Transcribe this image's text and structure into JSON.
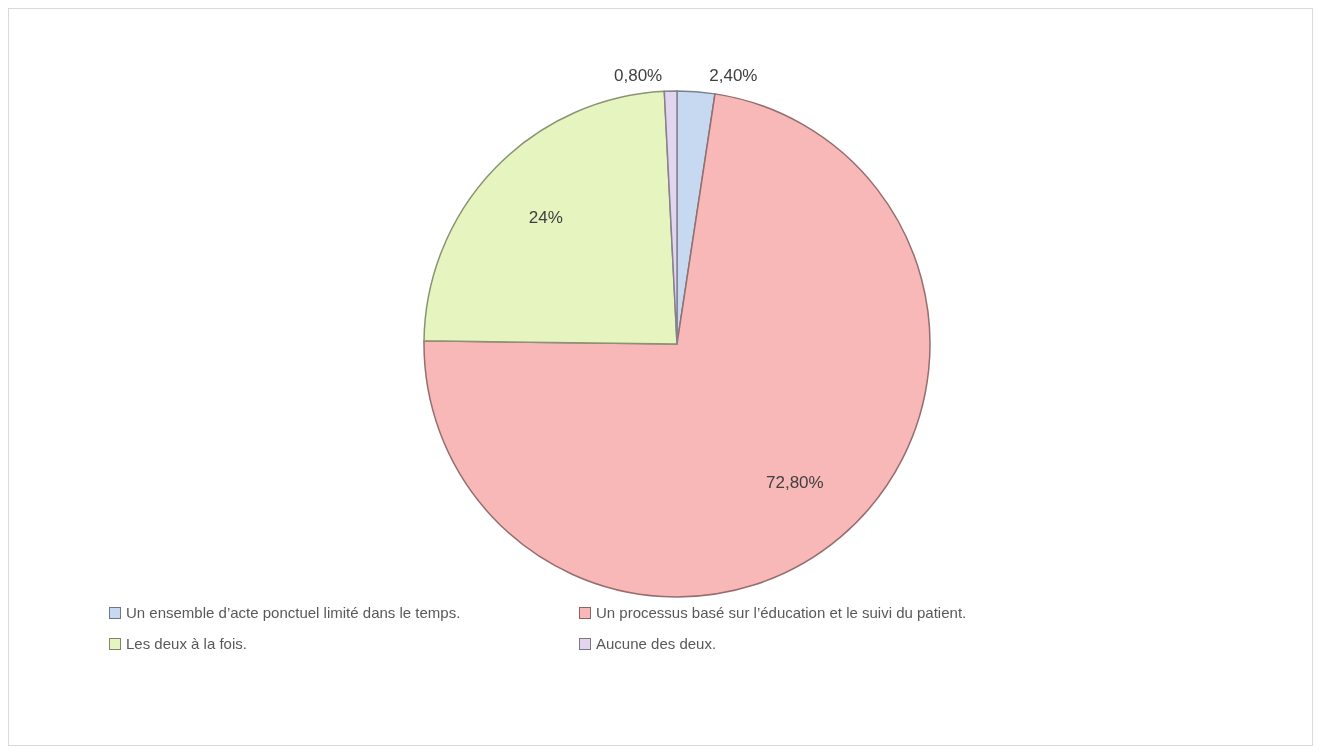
{
  "chart_data": {
    "type": "pie",
    "categories": [
      "Un ensemble d’acte ponctuel limité dans le temps.",
      "Un processus basé sur l’éducation et le suivi du patient.",
      "Les deux à la fois.",
      "Aucune des deux."
    ],
    "values": [
      2.4,
      72.8,
      24,
      0.8
    ],
    "colors": [
      "#c6d9f1",
      "#f9b8b8",
      "#e6f5c0",
      "#e1d5f0"
    ],
    "value_labels": [
      "2,40%",
      "72,80%",
      "24%",
      "0,80%"
    ],
    "legend": "bottom"
  }
}
